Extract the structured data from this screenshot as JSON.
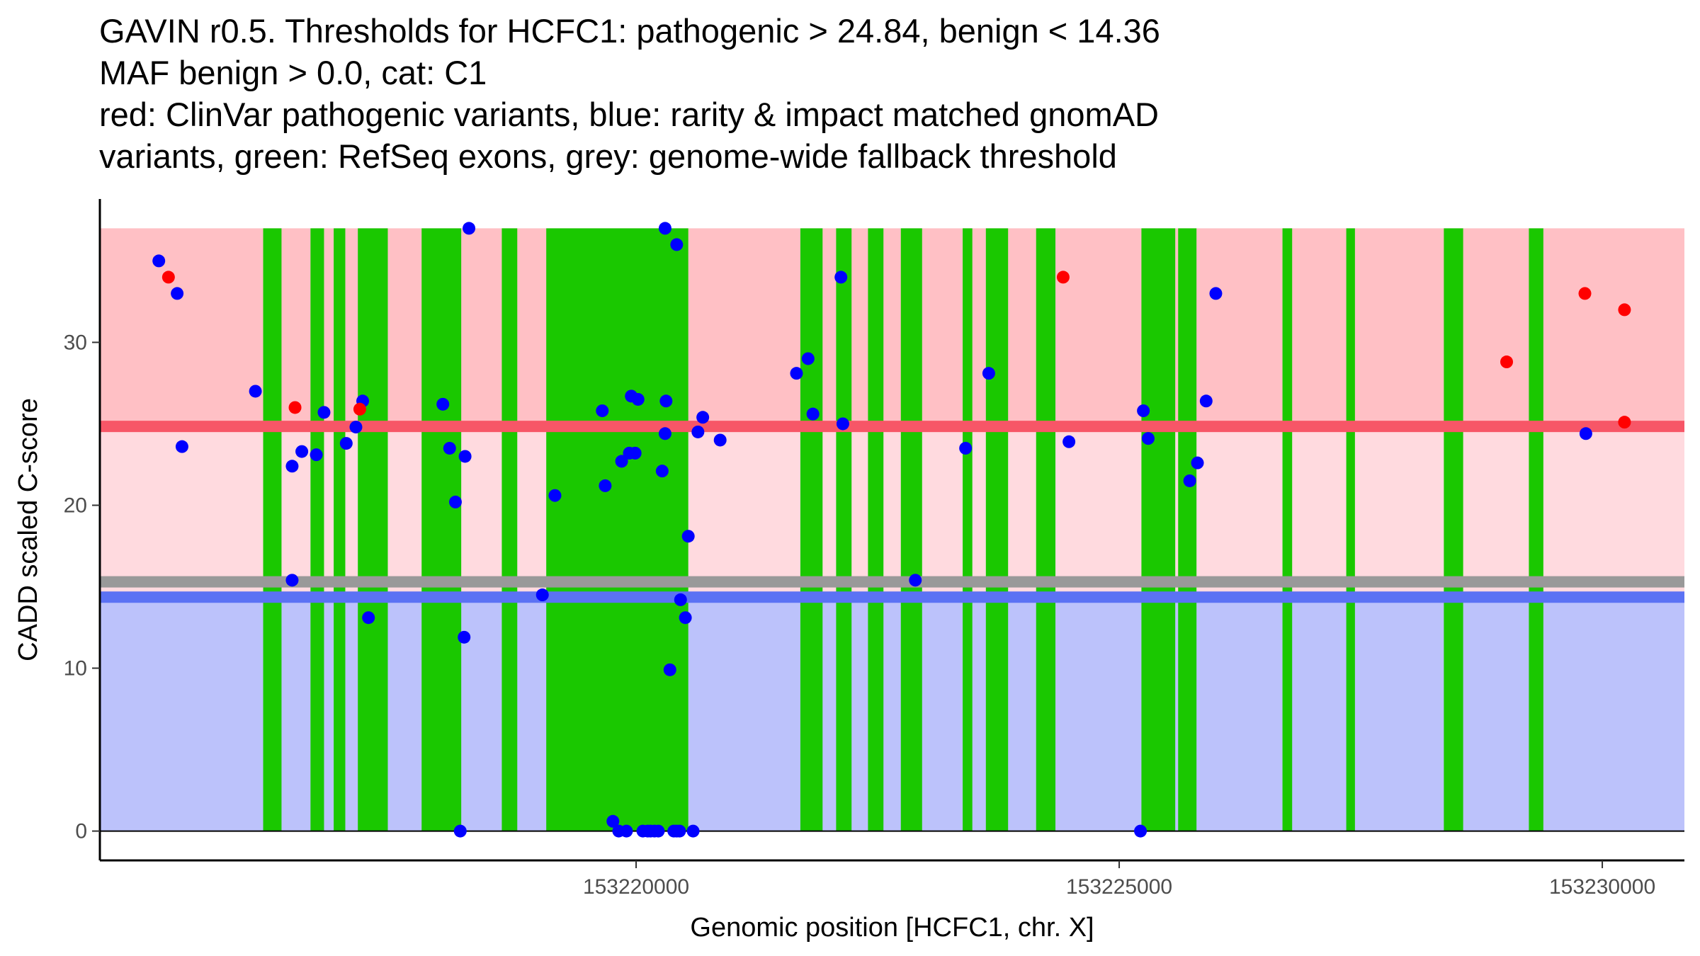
{
  "title": {
    "line1": "GAVIN r0.5. Thresholds for HCFC1: pathogenic > 24.84, benign < 14.36",
    "line2": "MAF benign > 0.0, cat: C1",
    "line3": "red: ClinVar pathogenic variants, blue: rarity & impact matched gnomAD",
    "line4": "variants, green: RefSeq exons, grey: genome-wide fallback threshold"
  },
  "chart_data": {
    "type": "scatter",
    "xlabel": "Genomic position [HCFC1, chr. X]",
    "ylabel": "CADD scaled C-score",
    "xlim": [
      153214450,
      153230850
    ],
    "ylim": [
      -1.8,
      38.8
    ],
    "x_ticks": [
      153220000,
      153225000,
      153230000
    ],
    "x_tick_labels": [
      "153220000",
      "153225000",
      "153230000"
    ],
    "y_ticks": [
      0,
      10,
      20,
      30
    ],
    "y_tick_labels": [
      "0",
      "10",
      "20",
      "30"
    ],
    "thresholds": {
      "pathogenic": 24.84,
      "benign": 14.36,
      "fallback": 15.3,
      "max_score": 37
    },
    "colors": {
      "pathogenic_region": "#ffc0c5",
      "uncertain_region": "#ffdadf",
      "benign_region": "#bcc2fb",
      "pathogenic_line": "#f75667",
      "benign_line": "#5b72f4",
      "fallback_line": "#999999",
      "exon": "#1ac800",
      "clinvar": "#ff0000",
      "gnomad": "#0000ff"
    },
    "exons": [
      [
        153216140,
        153216330
      ],
      [
        153216630,
        153216770
      ],
      [
        153216870,
        153216990
      ],
      [
        153217120,
        153217430
      ],
      [
        153217780,
        153218190
      ],
      [
        153218610,
        153218770
      ],
      [
        153219070,
        153220540
      ],
      [
        153221700,
        153221930
      ],
      [
        153222070,
        153222230
      ],
      [
        153222400,
        153222560
      ],
      [
        153222740,
        153222960
      ],
      [
        153223380,
        153223480
      ],
      [
        153223620,
        153223850
      ],
      [
        153224140,
        153224340
      ],
      [
        153225230,
        153225580
      ],
      [
        153225610,
        153225800
      ],
      [
        153226690,
        153226790
      ],
      [
        153227350,
        153227440
      ],
      [
        153228360,
        153228560
      ],
      [
        153229240,
        153229390
      ]
    ],
    "series": [
      {
        "name": "ClinVar pathogenic",
        "color": "#ff0000",
        "points": [
          [
            153215160,
            34.0
          ],
          [
            153216470,
            26.0
          ],
          [
            153217140,
            25.9
          ],
          [
            153224420,
            34.0
          ],
          [
            153229010,
            28.8
          ],
          [
            153229820,
            33.0
          ],
          [
            153230230,
            32.0
          ],
          [
            153230230,
            25.1
          ]
        ]
      },
      {
        "name": "gnomAD matched",
        "color": "#0000ff",
        "points": [
          [
            153215060,
            35.0
          ],
          [
            153215250,
            33.0
          ],
          [
            153215300,
            23.6
          ],
          [
            153216060,
            27.0
          ],
          [
            153216440,
            22.4
          ],
          [
            153216440,
            15.4
          ],
          [
            153216540,
            23.3
          ],
          [
            153216690,
            23.1
          ],
          [
            153216770,
            25.7
          ],
          [
            153217000,
            23.8
          ],
          [
            153217100,
            24.8
          ],
          [
            153217170,
            26.4
          ],
          [
            153217230,
            13.1
          ],
          [
            153218000,
            26.2
          ],
          [
            153218070,
            23.5
          ],
          [
            153218130,
            20.2
          ],
          [
            153218180,
            0.0
          ],
          [
            153218230,
            23.0
          ],
          [
            153218270,
            37.0
          ],
          [
            153218220,
            11.9
          ],
          [
            153219030,
            14.5
          ],
          [
            153219160,
            20.6
          ],
          [
            153219650,
            25.8
          ],
          [
            153219680,
            21.2
          ],
          [
            153219760,
            0.6
          ],
          [
            153219820,
            0.0
          ],
          [
            153219850,
            22.7
          ],
          [
            153219900,
            0.0
          ],
          [
            153219930,
            23.2
          ],
          [
            153219950,
            26.7
          ],
          [
            153219990,
            23.2
          ],
          [
            153220020,
            26.5
          ],
          [
            153220070,
            0.0
          ],
          [
            153220120,
            0.0
          ],
          [
            153220150,
            0.0
          ],
          [
            153220190,
            0.0
          ],
          [
            153220230,
            0.0
          ],
          [
            153220270,
            22.1
          ],
          [
            153220300,
            37.0
          ],
          [
            153220300,
            24.4
          ],
          [
            153220310,
            26.4
          ],
          [
            153220350,
            9.9
          ],
          [
            153220390,
            0.0
          ],
          [
            153220420,
            36.0
          ],
          [
            153220420,
            0.0
          ],
          [
            153220450,
            0.0
          ],
          [
            153220460,
            14.2
          ],
          [
            153220510,
            13.1
          ],
          [
            153220540,
            18.1
          ],
          [
            153220590,
            0.0
          ],
          [
            153220640,
            24.5
          ],
          [
            153220690,
            25.4
          ],
          [
            153220870,
            24.0
          ],
          [
            153221660,
            28.1
          ],
          [
            153221780,
            29.0
          ],
          [
            153221830,
            25.6
          ],
          [
            153222140,
            25.0
          ],
          [
            153222120,
            34.0
          ],
          [
            153222890,
            15.4
          ],
          [
            153223410,
            23.5
          ],
          [
            153223650,
            28.1
          ],
          [
            153224480,
            23.9
          ],
          [
            153225220,
            0.0
          ],
          [
            153225250,
            25.8
          ],
          [
            153225300,
            24.1
          ],
          [
            153225730,
            21.5
          ],
          [
            153225810,
            22.6
          ],
          [
            153225900,
            26.4
          ],
          [
            153226000,
            33.0
          ],
          [
            153229830,
            24.4
          ]
        ]
      }
    ]
  }
}
